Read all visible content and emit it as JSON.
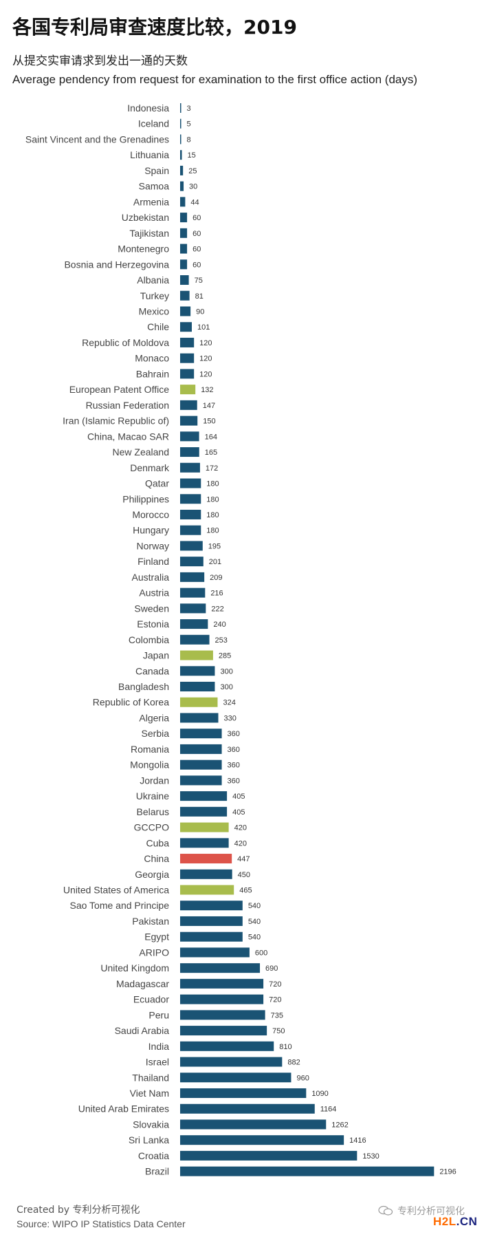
{
  "header": {
    "title": "各国专利局审查速度比较，2019",
    "subtitle_cn": "从提交实审请求到发出一通的天数",
    "subtitle_en": "Average pendency from request for examination to the first office action (days)"
  },
  "colors": {
    "default": "#1a5374",
    "regional": "#a8bc4c",
    "highlight": "#dd5349"
  },
  "chart_data": {
    "type": "bar",
    "orientation": "horizontal",
    "title": "各国专利局审查速度比较，2019",
    "xlabel": "Average pendency from request for examination to the first office action (days)",
    "ylabel": "",
    "xlim": [
      0,
      2200
    ],
    "grid": false,
    "categories": [
      "Indonesia",
      "Iceland",
      "Saint Vincent and the Grenadines",
      "Lithuania",
      "Spain",
      "Samoa",
      "Armenia",
      "Uzbekistan",
      "Tajikistan",
      "Montenegro",
      "Bosnia and Herzegovina",
      "Albania",
      "Turkey",
      "Mexico",
      "Chile",
      "Republic of Moldova",
      "Monaco",
      "Bahrain",
      "European Patent Office",
      "Russian Federation",
      "Iran (Islamic Republic of)",
      "China, Macao SAR",
      "New Zealand",
      "Denmark",
      "Qatar",
      "Philippines",
      "Morocco",
      "Hungary",
      "Norway",
      "Finland",
      "Australia",
      "Austria",
      "Sweden",
      "Estonia",
      "Colombia",
      "Japan",
      "Canada",
      "Bangladesh",
      "Republic of Korea",
      "Algeria",
      "Serbia",
      "Romania",
      "Mongolia",
      "Jordan",
      "Ukraine",
      "Belarus",
      "GCCPO",
      "Cuba",
      "China",
      "Georgia",
      "United States of America",
      "Sao Tome and Principe",
      "Pakistan",
      "Egypt",
      "ARIPO",
      "United Kingdom",
      "Madagascar",
      "Ecuador",
      "Peru",
      "Saudi Arabia",
      "India",
      "Israel",
      "Thailand",
      "Viet Nam",
      "United Arab Emirates",
      "Slovakia",
      "Sri Lanka",
      "Croatia",
      "Brazil"
    ],
    "values": [
      3,
      5,
      8,
      15,
      25,
      30,
      44,
      60,
      60,
      60,
      60,
      75,
      81,
      90,
      101,
      120,
      120,
      120,
      132,
      147,
      150,
      164,
      165,
      172,
      180,
      180,
      180,
      180,
      195,
      201,
      209,
      216,
      222,
      240,
      253,
      285,
      300,
      300,
      324,
      330,
      360,
      360,
      360,
      360,
      405,
      405,
      420,
      420,
      447,
      450,
      465,
      540,
      540,
      540,
      600,
      690,
      720,
      720,
      735,
      750,
      810,
      882,
      960,
      1090,
      1164,
      1262,
      1416,
      1530,
      2196
    ],
    "groups": [
      "default",
      "default",
      "default",
      "default",
      "default",
      "default",
      "default",
      "default",
      "default",
      "default",
      "default",
      "default",
      "default",
      "default",
      "default",
      "default",
      "default",
      "default",
      "regional",
      "default",
      "default",
      "default",
      "default",
      "default",
      "default",
      "default",
      "default",
      "default",
      "default",
      "default",
      "default",
      "default",
      "default",
      "default",
      "default",
      "regional",
      "default",
      "default",
      "regional",
      "default",
      "default",
      "default",
      "default",
      "default",
      "default",
      "default",
      "regional",
      "default",
      "highlight",
      "default",
      "regional",
      "default",
      "default",
      "default",
      "default",
      "default",
      "default",
      "default",
      "default",
      "default",
      "default",
      "default",
      "default",
      "default",
      "default",
      "default",
      "default",
      "default",
      "default"
    ]
  },
  "footer": {
    "created": "Created by 专利分析可视化",
    "source": "Source: WIPO IP Statistics Data Center"
  },
  "watermark": {
    "text": "专利分析可视化",
    "icon": "wechat-icon",
    "brand_prefix": "H2L",
    "brand_suffix": ".CN"
  }
}
